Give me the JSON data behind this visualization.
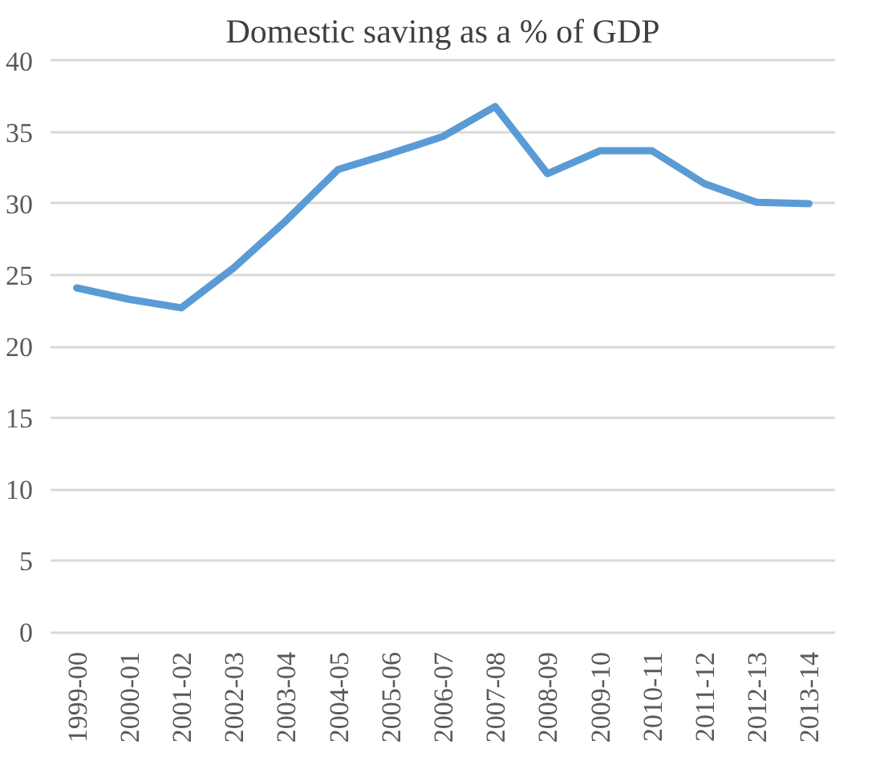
{
  "chart_data": {
    "type": "line",
    "title": "Domestic saving as a % of GDP",
    "categories": [
      "1999-00",
      "2000-01",
      "2001-02",
      "2002-03",
      "2003-04",
      "2004-05",
      "2005-06",
      "2006-07",
      "2007-08",
      "2008-09",
      "2009-10",
      "2010-11",
      "2011-12",
      "2012-13",
      "2013-14"
    ],
    "series": [
      {
        "color": "#5b9bd5",
        "values": [
          24.1,
          23.3,
          22.7,
          25.5,
          28.8,
          32.4,
          33.5,
          34.7,
          36.8,
          32.1,
          33.7,
          33.7,
          31.4,
          30.1,
          30.0
        ]
      }
    ],
    "ylim": [
      0,
      40
    ],
    "yticks": [
      0,
      5,
      10,
      15,
      20,
      25,
      30,
      35,
      40
    ],
    "grid": "y",
    "marker": "none",
    "line_style": "solid"
  }
}
